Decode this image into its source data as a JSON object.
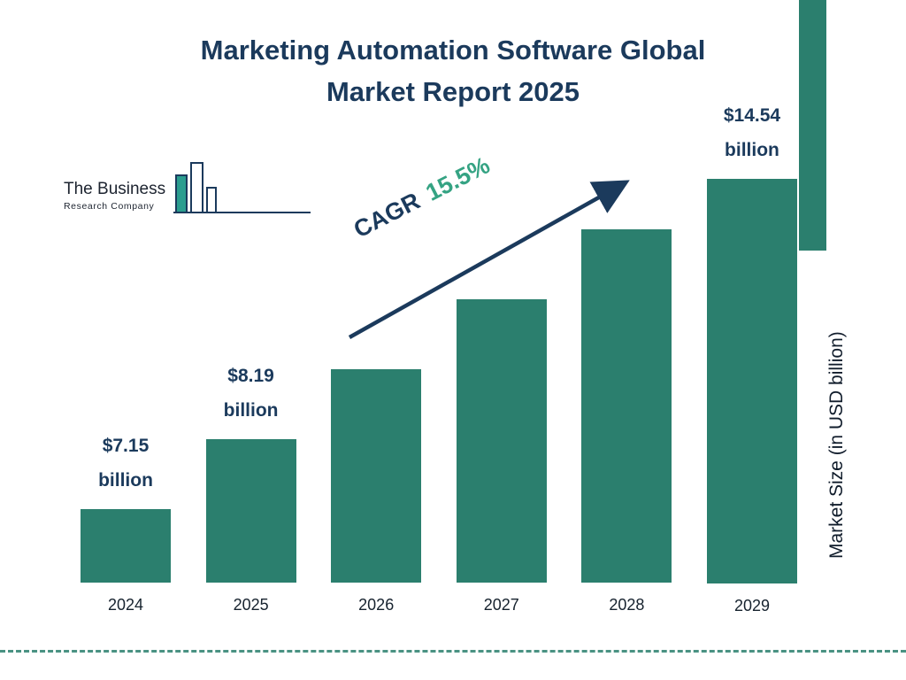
{
  "title_lines": [
    "Marketing Automation Software Global",
    "Market Report 2025"
  ],
  "logo": {
    "name_line": "The Business",
    "subtitle_line": "Research Company"
  },
  "cagr": {
    "label": "CAGR",
    "value": "15.5%"
  },
  "chart_data": {
    "type": "bar",
    "title": "Marketing Automation Software Global Market Report 2025",
    "categories": [
      "2024",
      "2025",
      "2026",
      "2027",
      "2028",
      "2029"
    ],
    "values": [
      7.15,
      8.19,
      9.46,
      10.93,
      12.62,
      14.54
    ],
    "value_labels": [
      {
        "amount": "$7.15",
        "unit": "billion"
      },
      {
        "amount": "$8.19",
        "unit": "billion"
      },
      null,
      null,
      null,
      {
        "amount": "$14.54",
        "unit": "billion"
      }
    ],
    "cagr": "15.5%",
    "xlabel": "",
    "ylabel": "Market Size (in USD billion)",
    "ylim": [
      0,
      16
    ],
    "grid": false,
    "legend": "none"
  },
  "colors": {
    "bar": "#2b7f6e",
    "navy": "#1b3a5c",
    "accent_green": "#35a383",
    "dashed_line": "#2b7f6e",
    "strip": "#2b7f6e"
  }
}
